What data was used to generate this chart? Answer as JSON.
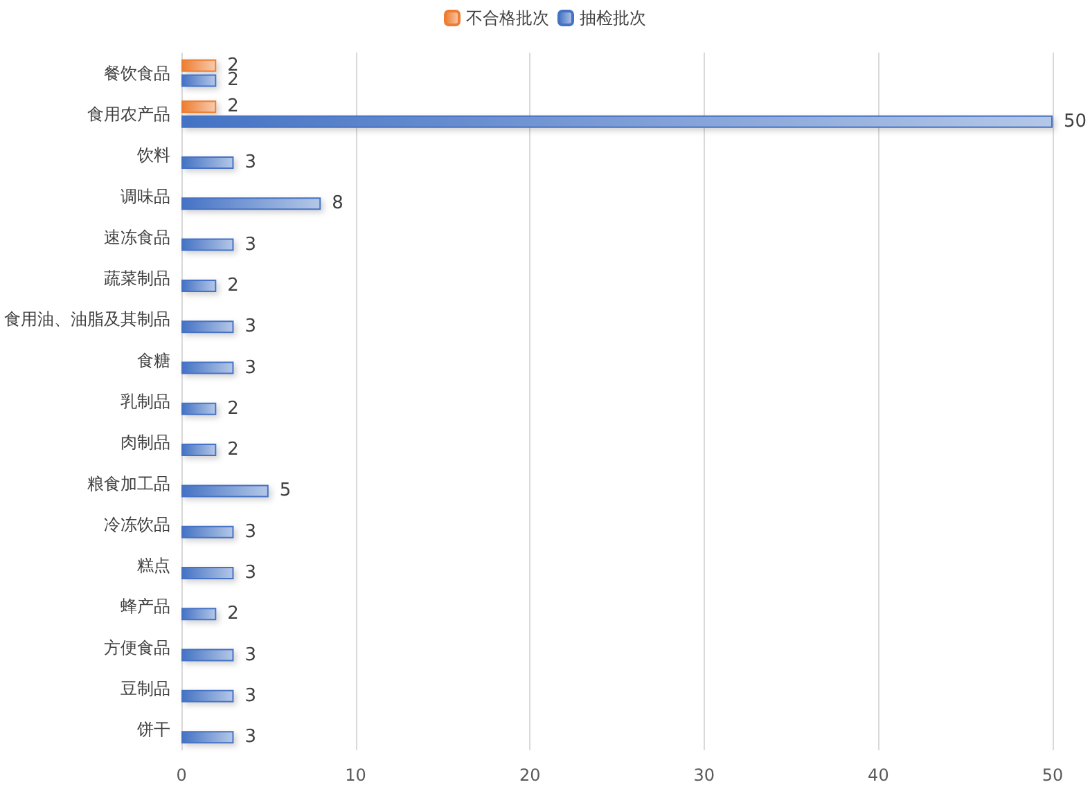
{
  "chart_data": {
    "type": "bar",
    "orientation": "horizontal",
    "categories": [
      "餐饮食品",
      "食用农产品",
      "饮料",
      "调味品",
      "速冻食品",
      "蔬菜制品",
      "食用油、油脂及其制品",
      "食糖",
      "乳制品",
      "肉制品",
      "粮食加工品",
      "冷冻饮品",
      "糕点",
      "蜂产品",
      "方便食品",
      "豆制品",
      "饼干"
    ],
    "series": [
      {
        "name": "不合格批次",
        "color": "#ed7d31",
        "values": [
          2,
          2,
          null,
          null,
          null,
          null,
          null,
          null,
          null,
          null,
          null,
          null,
          null,
          null,
          null,
          null,
          null
        ]
      },
      {
        "name": "抽检批次",
        "color": "#4472c4",
        "values": [
          2,
          50,
          3,
          8,
          3,
          2,
          3,
          3,
          2,
          2,
          5,
          3,
          3,
          2,
          3,
          3,
          3
        ]
      }
    ],
    "xlim": [
      0,
      50
    ],
    "xticks": [
      0,
      10,
      20,
      30,
      40,
      50
    ],
    "grid": "x",
    "legend": "top",
    "data_labels": true
  }
}
